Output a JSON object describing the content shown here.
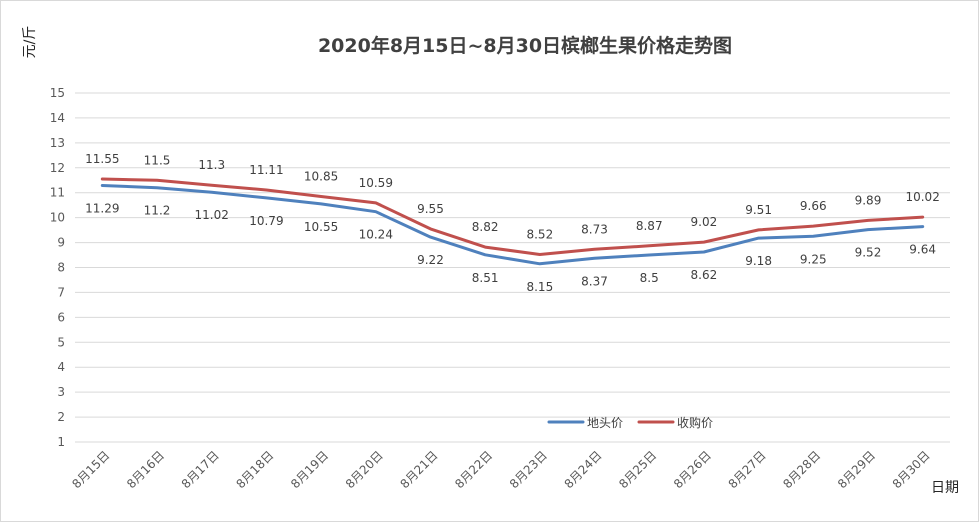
{
  "chart_data": {
    "type": "line",
    "title": "2020年8月15日~8月30日槟榔生果价格走势图",
    "xlabel": "日期",
    "ylabel": "元/斤",
    "ylim": [
      1,
      15
    ],
    "yticks": [
      1,
      2,
      3,
      4,
      5,
      6,
      7,
      8,
      9,
      10,
      11,
      12,
      13,
      14,
      15
    ],
    "grid": true,
    "legend_position": "bottom-right",
    "categories": [
      "8月15日",
      "8月16日",
      "8月17日",
      "8月18日",
      "8月19日",
      "8月20日",
      "8月21日",
      "8月22日",
      "8月23日",
      "8月24日",
      "8月25日",
      "8月26日",
      "8月27日",
      "8月28日",
      "8月29日",
      "8月30日"
    ],
    "series": [
      {
        "name": "地头价",
        "color": "#4f81bd",
        "values": [
          11.29,
          11.2,
          11.02,
          10.79,
          10.55,
          10.24,
          9.22,
          8.51,
          8.15,
          8.37,
          8.5,
          8.62,
          9.18,
          9.25,
          9.52,
          9.64
        ],
        "labels": [
          "11.29",
          "11.2",
          "11.02",
          "10.79",
          "10.55",
          "10.24",
          "9.22",
          "8.51",
          "8.15",
          "8.37",
          "8.5",
          "8.62",
          "9.18",
          "9.25",
          "9.52",
          "9.64"
        ],
        "label_position": "below"
      },
      {
        "name": "收购价",
        "color": "#c0504d",
        "values": [
          11.55,
          11.5,
          11.3,
          11.11,
          10.85,
          10.59,
          9.55,
          8.82,
          8.52,
          8.73,
          8.87,
          9.02,
          9.51,
          9.66,
          9.89,
          10.02
        ],
        "labels": [
          "11.55",
          "11.5",
          "11.3",
          "11.11",
          "10.85",
          "10.59",
          "9.55",
          "8.82",
          "8.52",
          "8.73",
          "8.87",
          "9.02",
          "9.51",
          "9.66",
          "9.89",
          "10.02"
        ],
        "label_position": "above"
      }
    ]
  }
}
